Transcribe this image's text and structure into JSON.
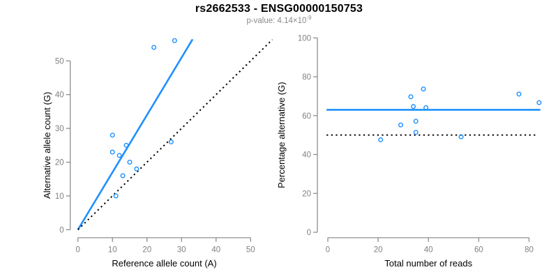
{
  "title": "rs2662533 - ENSG00000150753",
  "subtitle": {
    "prefix": "p-value: 4.14×10",
    "exponent": "-9"
  },
  "colors": {
    "accent_blue": "#1E90FF",
    "axis_gray": "#858585",
    "tick_label_gray": "#808080",
    "text_black": "#000000",
    "dotted_black": "#000000",
    "subtitle_gray": "#8a8a8a"
  },
  "chart_data": [
    {
      "type": "scatter",
      "panel": "left",
      "xlabel": "Reference allele count (A)",
      "ylabel": "Alternative allele count (G)",
      "x_ticks": [
        0,
        10,
        20,
        30,
        40,
        50
      ],
      "y_ticks": [
        0,
        10,
        20,
        30,
        40,
        50
      ],
      "xlim": [
        0,
        56.5
      ],
      "ylim": [
        0,
        56.5
      ],
      "grid": false,
      "legend": "none",
      "marker": "open-circle",
      "points": [
        {
          "x": 10,
          "y": 28
        },
        {
          "x": 10,
          "y": 23
        },
        {
          "x": 12,
          "y": 22
        },
        {
          "x": 14,
          "y": 25
        },
        {
          "x": 15,
          "y": 20
        },
        {
          "x": 17,
          "y": 18
        },
        {
          "x": 13,
          "y": 16
        },
        {
          "x": 11,
          "y": 10
        },
        {
          "x": 27,
          "y": 26
        },
        {
          "x": 22,
          "y": 54
        },
        {
          "x": 28,
          "y": 56
        }
      ],
      "lines": [
        {
          "name": "fit-line",
          "style": "solid",
          "color": "#1E90FF",
          "width": 2.6,
          "x1": 0,
          "y1": 0,
          "x2": 33.2,
          "y2": 56.4
        },
        {
          "name": "identity-line",
          "style": "dotted",
          "color": "#000000",
          "width": 2,
          "x1": 0,
          "y1": 0,
          "x2": 56.3,
          "y2": 56.3
        }
      ]
    },
    {
      "type": "scatter",
      "panel": "right",
      "xlabel": "Total number of reads",
      "ylabel": "Percentage alternative (G)",
      "x_ticks": [
        0,
        20,
        40,
        60,
        80
      ],
      "y_ticks": [
        0,
        20,
        40,
        60,
        80,
        100
      ],
      "xlim": [
        0,
        84.5
      ],
      "ylim": [
        0,
        100
      ],
      "grid": false,
      "legend": "none",
      "marker": "open-circle",
      "points": [
        {
          "x": 38,
          "y": 73.7
        },
        {
          "x": 33,
          "y": 69.7
        },
        {
          "x": 34,
          "y": 64.7
        },
        {
          "x": 39,
          "y": 64.1
        },
        {
          "x": 35,
          "y": 57.1
        },
        {
          "x": 35,
          "y": 51.4
        },
        {
          "x": 29,
          "y": 55.2
        },
        {
          "x": 21,
          "y": 47.6
        },
        {
          "x": 53,
          "y": 49.1
        },
        {
          "x": 76,
          "y": 71.1
        },
        {
          "x": 84,
          "y": 66.7
        }
      ],
      "lines": [
        {
          "name": "mean-percentage-line",
          "style": "solid",
          "color": "#1E90FF",
          "width": 2.6,
          "x1": -0.5,
          "y1": 63,
          "x2": 84.5,
          "y2": 63
        },
        {
          "name": "null-50pct-line",
          "style": "dotted",
          "color": "#000000",
          "width": 2,
          "x1": -0.5,
          "y1": 50,
          "x2": 83,
          "y2": 50
        }
      ]
    }
  ]
}
